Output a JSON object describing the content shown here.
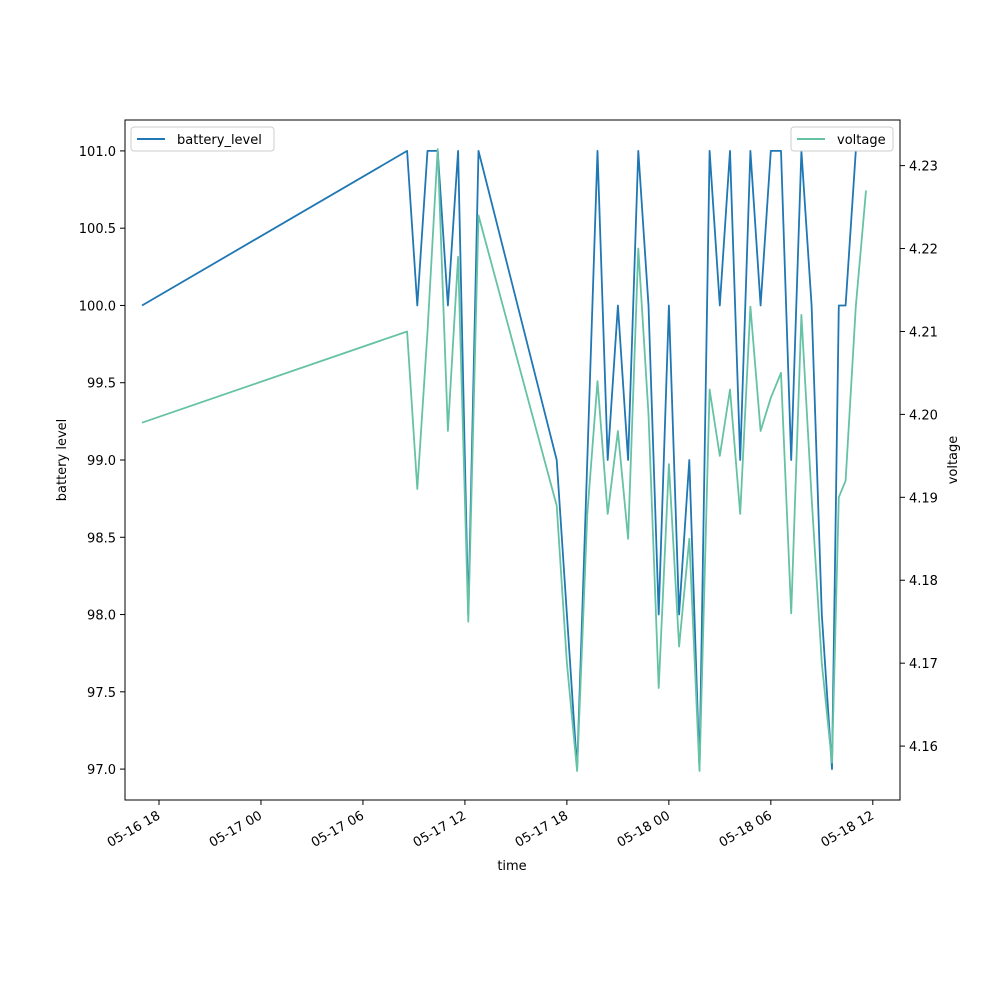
{
  "chart_data": {
    "type": "line",
    "xlabel": "time",
    "ylabel_left": "battery level",
    "ylabel_right": "voltage",
    "x_range": [
      "2024-05-16 16:00",
      "2024-05-18 13:36"
    ],
    "x_ticks": [
      "05-16 18",
      "05-17 00",
      "05-17 06",
      "05-17 12",
      "05-17 18",
      "05-18 00",
      "05-18 06",
      "05-18 12"
    ],
    "y_left_range": [
      96.8,
      101.2
    ],
    "y_left_ticks": [
      "97.0",
      "97.5",
      "98.0",
      "98.5",
      "99.0",
      "99.5",
      "100.0",
      "100.5",
      "101.0"
    ],
    "y_right_range": [
      4.1535,
      4.2355
    ],
    "y_right_ticks": [
      "4.16",
      "4.17",
      "4.18",
      "4.19",
      "4.20",
      "4.21",
      "4.22",
      "4.23"
    ],
    "grid": false,
    "series": [
      {
        "name": "battery_level",
        "axis": "left",
        "color": "#1f77b4",
        "x": [
          "05-16 17:00",
          "05-17 08:36",
          "05-17 09:12",
          "05-17 09:48",
          "05-17 10:24",
          "05-17 11:00",
          "05-17 11:36",
          "05-17 12:12",
          "05-17 12:48",
          "05-17 17:24",
          "05-17 18:00",
          "05-17 18:36",
          "05-17 19:12",
          "05-17 19:48",
          "05-17 20:24",
          "05-17 21:00",
          "05-17 21:36",
          "05-17 22:12",
          "05-17 22:48",
          "05-17 23:24",
          "05-18 00:00",
          "05-18 00:36",
          "05-18 01:12",
          "05-18 01:48",
          "05-18 02:24",
          "05-18 03:00",
          "05-18 03:36",
          "05-18 04:12",
          "05-18 04:48",
          "05-18 05:24",
          "05-18 06:00",
          "05-18 06:36",
          "05-18 07:12",
          "05-18 07:48",
          "05-18 08:24",
          "05-18 09:00",
          "05-18 09:36",
          "05-18 10:00",
          "05-18 10:24",
          "05-18 11:00"
        ],
        "values": [
          100,
          101,
          100,
          101,
          101,
          100,
          101,
          98,
          101,
          99,
          98,
          97,
          99,
          101,
          99,
          100,
          99,
          101,
          100,
          98,
          100,
          98,
          99,
          97,
          101,
          100,
          101,
          99,
          101,
          100,
          101,
          101,
          99,
          101,
          100,
          98,
          97,
          100,
          100,
          101
        ]
      },
      {
        "name": "voltage",
        "axis": "right",
        "color": "#66c2a5",
        "x": [
          "05-16 17:00",
          "05-17 08:36",
          "05-17 09:12",
          "05-17 09:48",
          "05-17 10:24",
          "05-17 11:00",
          "05-17 11:36",
          "05-17 12:12",
          "05-17 12:48",
          "05-17 17:24",
          "05-17 18:00",
          "05-17 18:36",
          "05-17 19:12",
          "05-17 19:48",
          "05-17 20:24",
          "05-17 21:00",
          "05-17 21:36",
          "05-17 22:12",
          "05-17 22:48",
          "05-17 23:24",
          "05-18 00:00",
          "05-18 00:36",
          "05-18 01:12",
          "05-18 01:48",
          "05-18 02:24",
          "05-18 03:00",
          "05-18 03:36",
          "05-18 04:12",
          "05-18 04:48",
          "05-18 05:24",
          "05-18 06:00",
          "05-18 06:36",
          "05-18 07:12",
          "05-18 07:48",
          "05-18 08:24",
          "05-18 09:00",
          "05-18 09:36",
          "05-18 10:00",
          "05-18 10:24",
          "05-18 11:00",
          "05-18 11:36"
        ],
        "values": [
          4.199,
          4.21,
          4.191,
          4.21,
          4.232,
          4.198,
          4.219,
          4.175,
          4.224,
          4.189,
          4.17,
          4.157,
          4.188,
          4.204,
          4.188,
          4.198,
          4.185,
          4.22,
          4.2,
          4.167,
          4.194,
          4.172,
          4.185,
          4.157,
          4.203,
          4.195,
          4.203,
          4.188,
          4.213,
          4.198,
          4.202,
          4.205,
          4.176,
          4.212,
          4.19,
          4.17,
          4.158,
          4.19,
          4.192,
          4.213,
          4.227
        ]
      }
    ],
    "legend": [
      {
        "label": "battery_level",
        "placement": "upper-left"
      },
      {
        "label": "voltage",
        "placement": "upper-right"
      }
    ]
  }
}
